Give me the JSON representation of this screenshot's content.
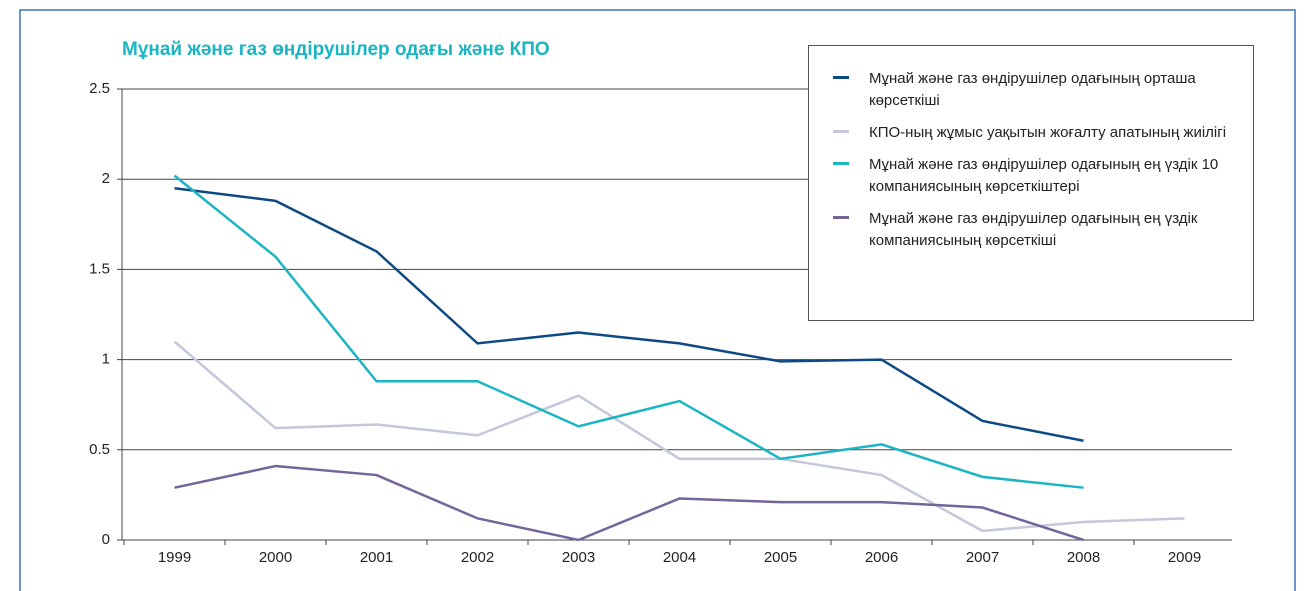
{
  "chart_data": {
    "type": "line",
    "title": "Мұнай және газ өндірушілер одағы және КПО",
    "categories": [
      "1999",
      "2000",
      "2001",
      "2002",
      "2003",
      "2004",
      "2005",
      "2006",
      "2007",
      "2008",
      "2009"
    ],
    "series": [
      {
        "name": "Мұнай және газ өндірушілер одағының орташа көрсеткіші",
        "color": "#0d4a85",
        "values": [
          1.95,
          1.88,
          1.6,
          1.09,
          1.15,
          1.09,
          0.99,
          1.0,
          0.66,
          0.55,
          null
        ]
      },
      {
        "name": "КПО-ның жұмыс уақытын жоғалту апатының жиілігі",
        "color": "#c3c8da",
        "values": [
          1.1,
          0.62,
          0.64,
          0.58,
          0.8,
          0.45,
          0.45,
          0.36,
          0.05,
          0.1,
          0.12
        ]
      },
      {
        "name": "Мұнай және газ өндірушілер одағының ең үздік 10 компаниясының көрсеткіштері",
        "color": "#1ab5c3",
        "values": [
          2.02,
          1.57,
          0.88,
          0.88,
          0.63,
          0.77,
          0.45,
          0.53,
          0.35,
          0.29,
          null
        ]
      },
      {
        "name": "Мұнай және газ өндірушілер одағының ең үздік компаниясының көрсеткіші",
        "color": "#74659a",
        "values": [
          0.29,
          0.41,
          0.36,
          0.12,
          0,
          0.23,
          0.21,
          0.21,
          0.18,
          0,
          null
        ]
      }
    ],
    "ylim": [
      0,
      2.5
    ],
    "yticks": [
      0,
      0.5,
      1,
      1.5,
      2,
      2.5
    ],
    "grid": true
  }
}
